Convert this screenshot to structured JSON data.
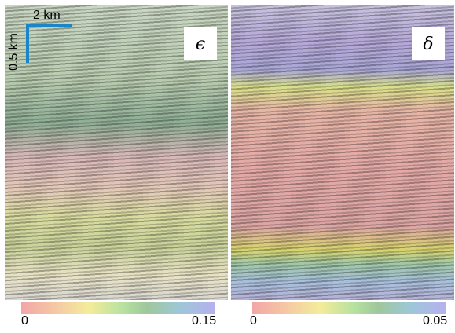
{
  "scale_bar": {
    "horizontal": "2 km",
    "vertical": "0.5 km"
  },
  "panels": [
    {
      "label": "ϵ",
      "colorbar": {
        "min": 0,
        "max": 0.15
      }
    },
    {
      "label": "δ",
      "colorbar": {
        "min": 0,
        "max": 0.05
      }
    }
  ]
}
